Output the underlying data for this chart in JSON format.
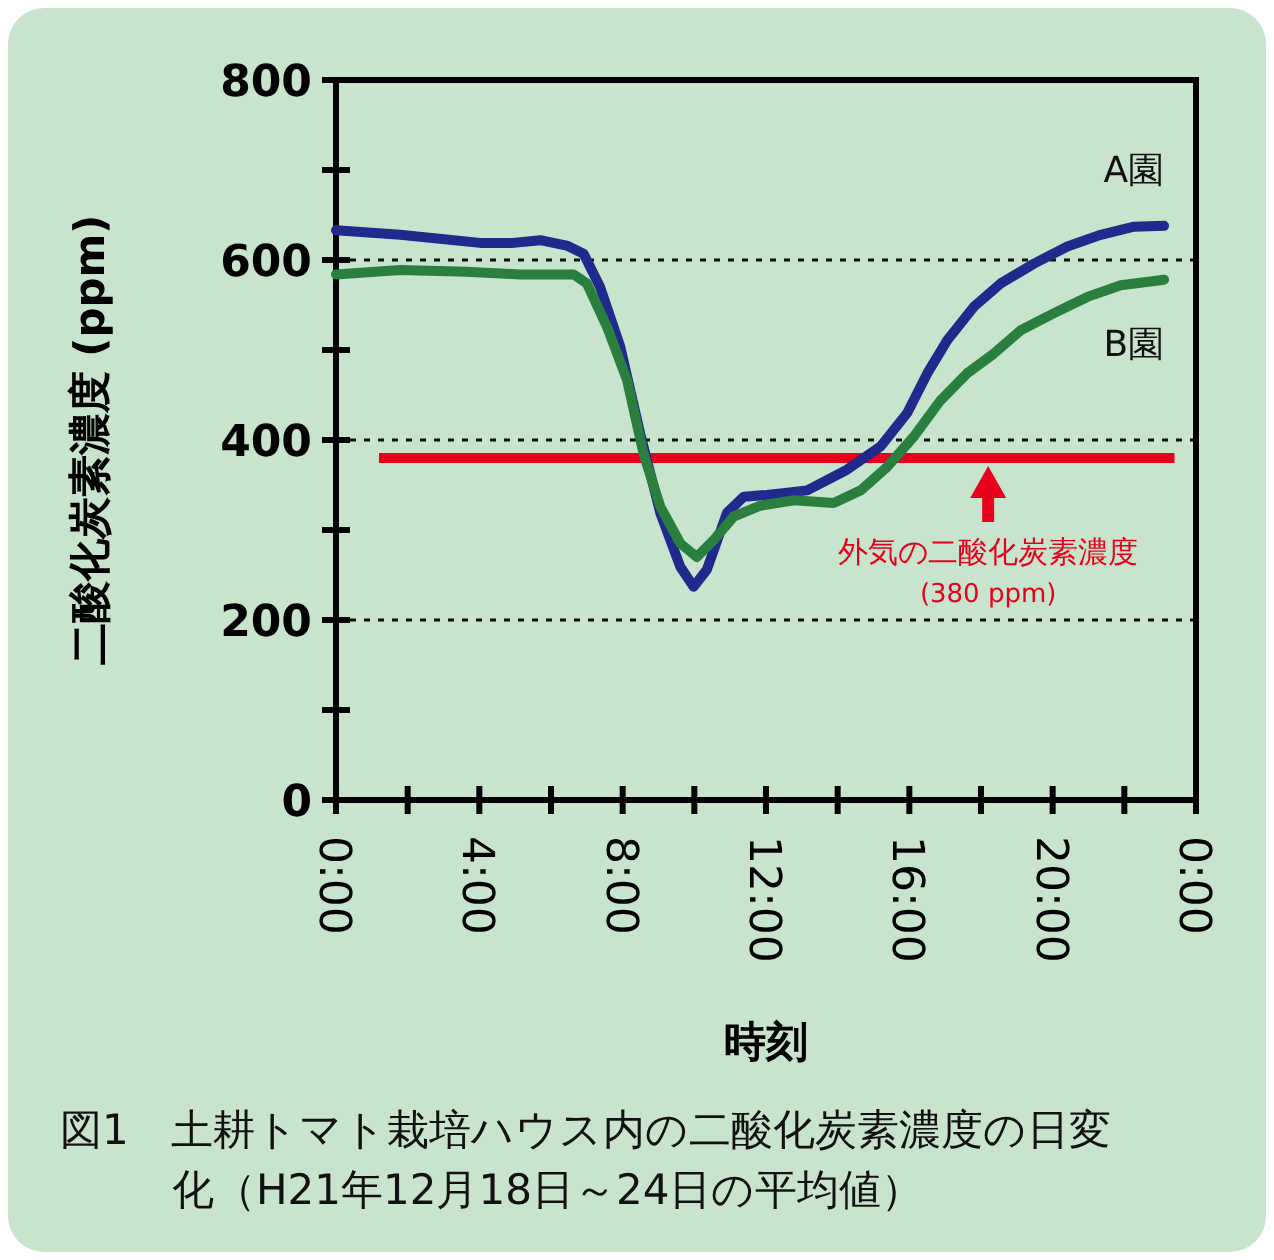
{
  "chart_data": {
    "type": "line",
    "title": "図1　土耕トマト栽培ハウス内の二酸化炭素濃度の日変化（H21年12月18日～24日の平均値）",
    "xlabel": "時刻",
    "ylabel": "二酸化炭素濃度 (ppm)",
    "xlim": [
      0,
      24
    ],
    "ylim": [
      0,
      800
    ],
    "xticks": [
      {
        "value": 0,
        "label": "0:00"
      },
      {
        "value": 2,
        "label": null
      },
      {
        "value": 4,
        "label": "4:00"
      },
      {
        "value": 6,
        "label": null
      },
      {
        "value": 8,
        "label": "8:00"
      },
      {
        "value": 10,
        "label": null
      },
      {
        "value": 12,
        "label": "12:00"
      },
      {
        "value": 14,
        "label": null
      },
      {
        "value": 16,
        "label": "16:00"
      },
      {
        "value": 18,
        "label": null
      },
      {
        "value": 20,
        "label": "20:00"
      },
      {
        "value": 22,
        "label": null
      },
      {
        "value": 24,
        "label": "0:00"
      }
    ],
    "yticks": [
      0,
      {
        "value": 100,
        "label": null
      },
      200,
      {
        "value": 300,
        "label": null
      },
      400,
      {
        "value": 500,
        "label": null
      },
      600,
      {
        "value": 700,
        "label": null
      },
      800
    ],
    "grid": "y",
    "legend": false,
    "marker": "none",
    "line_style": "solid",
    "series": [
      {
        "name": "A園",
        "color": "#1f2a8c",
        "x": [
          0.0,
          1.79,
          4.02,
          4.95,
          5.7,
          6.44,
          6.91,
          7.37,
          7.93,
          8.49,
          9.05,
          9.61,
          9.98,
          10.35,
          10.91,
          11.38,
          12.03,
          13.15,
          14.26,
          15.2,
          15.94,
          16.5,
          17.06,
          17.8,
          18.55,
          19.48,
          20.41,
          21.34,
          22.27,
          23.11
        ],
        "values": [
          633,
          628,
          619,
          619,
          622,
          616,
          607,
          570,
          504,
          407,
          319,
          259,
          237,
          256,
          319,
          337,
          339,
          344,
          367,
          393,
          430,
          474,
          511,
          548,
          574,
          596,
          615,
          628,
          637,
          638
        ]
      },
      {
        "name": "B園",
        "color": "#2a7f3e",
        "x": [
          0.0,
          1.79,
          3.65,
          5.14,
          6.63,
          7.0,
          7.56,
          8.12,
          8.58,
          9.05,
          9.61,
          10.07,
          10.54,
          11.1,
          11.84,
          12.78,
          13.89,
          14.64,
          15.38,
          16.13,
          16.87,
          17.61,
          18.36,
          19.11,
          20.04,
          20.97,
          21.9,
          23.11
        ],
        "values": [
          584,
          589,
          587,
          584,
          584,
          574,
          526,
          467,
          385,
          326,
          285,
          270,
          289,
          315,
          327,
          333,
          330,
          344,
          370,
          404,
          444,
          474,
          496,
          522,
          541,
          559,
          572,
          578
        ]
      }
    ],
    "ref_lines": [
      {
        "axis": "y",
        "value": 380,
        "color": "#e8001c",
        "line_style": "solid"
      }
    ],
    "annotations": [
      {
        "text": "外気の二酸化炭素濃度\n(380 ppm)",
        "x": 18.2,
        "y": 380
      }
    ]
  }
}
